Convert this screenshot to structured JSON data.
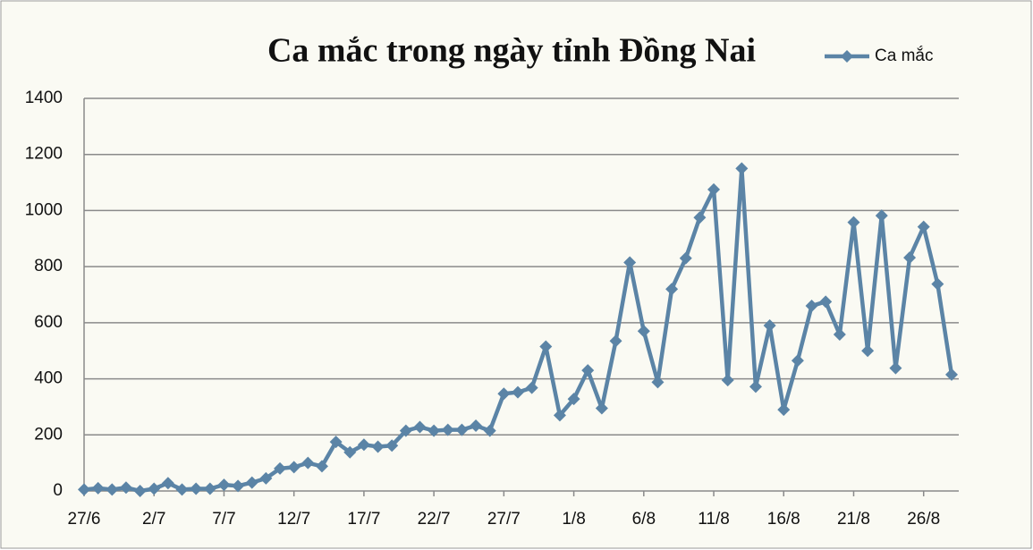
{
  "chart_data": {
    "type": "line",
    "title": "Ca mắc trong ngày tỉnh Đồng Nai",
    "categories": [
      "27/6",
      null,
      null,
      null,
      null,
      "2/7",
      null,
      null,
      null,
      null,
      "7/7",
      null,
      null,
      null,
      null,
      "12/7",
      null,
      null,
      null,
      null,
      "17/7",
      null,
      null,
      null,
      null,
      "22/7",
      null,
      null,
      null,
      null,
      "27/7",
      null,
      null,
      null,
      null,
      "1/8",
      null,
      null,
      null,
      null,
      "6/8",
      null,
      null,
      null,
      null,
      "11/8",
      null,
      null,
      null,
      null,
      "16/8",
      null,
      null,
      null,
      null,
      "21/8",
      null,
      null,
      null,
      null,
      "26/8",
      null,
      null
    ],
    "series": [
      {
        "name": "Ca mắc",
        "color": "#5b84a6",
        "values": [
          5,
          10,
          5,
          12,
          0,
          8,
          28,
          5,
          8,
          8,
          22,
          18,
          30,
          45,
          80,
          85,
          100,
          88,
          175,
          138,
          165,
          158,
          162,
          215,
          228,
          215,
          218,
          218,
          233,
          215,
          347,
          352,
          368,
          515,
          270,
          328,
          430,
          295,
          535,
          815,
          570,
          388,
          720,
          830,
          975,
          1075,
          395,
          1150,
          372,
          590,
          290,
          465,
          660,
          675,
          558,
          958,
          500,
          982,
          438,
          832,
          942,
          738,
          415
        ]
      }
    ],
    "ylim": [
      0,
      1400
    ],
    "yticks": [
      0,
      200,
      400,
      600,
      800,
      1000,
      1200,
      1400
    ],
    "grid": true,
    "legend": "top-right"
  }
}
